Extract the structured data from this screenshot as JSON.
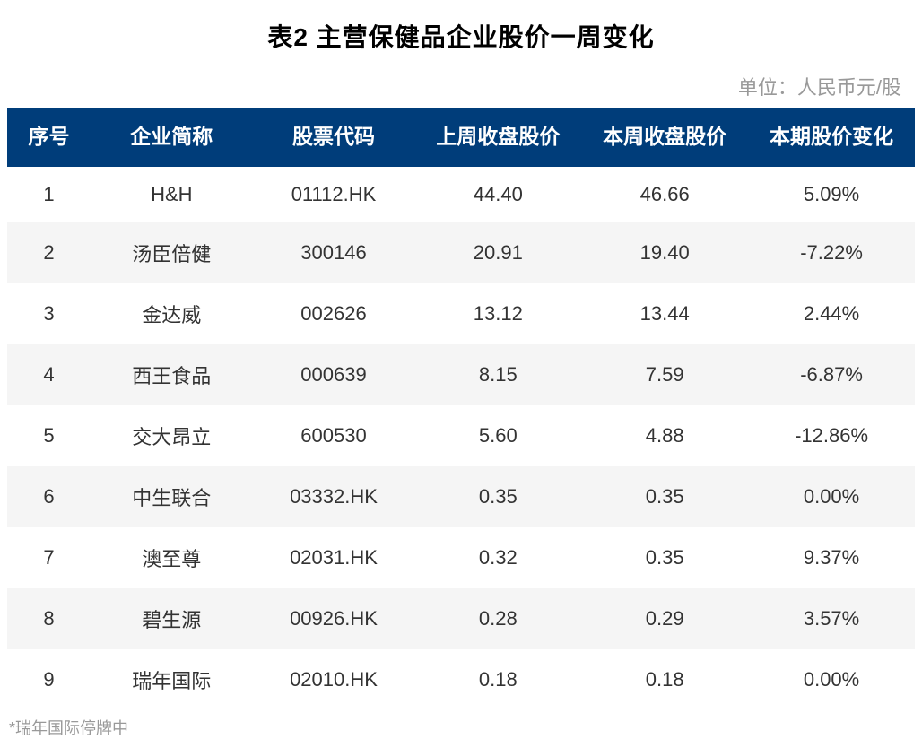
{
  "title": "表2 主营保健品企业股价一周变化",
  "unit": "单位：人民币元/股",
  "footnote": "*瑞年国际停牌中",
  "table": {
    "columns": [
      "序号",
      "企业简称",
      "股票代码",
      "上周收盘股价",
      "本周收盘股价",
      "本期股价变化"
    ],
    "rows": [
      [
        "1",
        "H&H",
        "01112.HK",
        "44.40",
        "46.66",
        "5.09%"
      ],
      [
        "2",
        "汤臣倍健",
        "300146",
        "20.91",
        "19.40",
        "-7.22%"
      ],
      [
        "3",
        "金达威",
        "002626",
        "13.12",
        "13.44",
        "2.44%"
      ],
      [
        "4",
        "西王食品",
        "000639",
        "8.15",
        "7.59",
        "-6.87%"
      ],
      [
        "5",
        "交大昂立",
        "600530",
        "5.60",
        "4.88",
        "-12.86%"
      ],
      [
        "6",
        "中生联合",
        "03332.HK",
        "0.35",
        "0.35",
        "0.00%"
      ],
      [
        "7",
        "澳至尊",
        "02031.HK",
        "0.32",
        "0.35",
        "9.37%"
      ],
      [
        "8",
        "碧生源",
        "00926.HK",
        "0.28",
        "0.29",
        "3.57%"
      ],
      [
        "9",
        "瑞年国际",
        "02010.HK",
        "0.18",
        "0.18",
        "0.00%"
      ]
    ],
    "header_bg_color": "#003d7a",
    "header_text_color": "#ffffff",
    "row_odd_bg": "#ffffff",
    "row_even_bg": "#f5f5f5",
    "cell_text_color": "#333333",
    "title_fontsize": 28,
    "header_fontsize": 23,
    "cell_fontsize": 22,
    "unit_fontsize": 22,
    "unit_color": "#999999",
    "footnote_fontsize": 18,
    "footnote_color": "#999999"
  }
}
